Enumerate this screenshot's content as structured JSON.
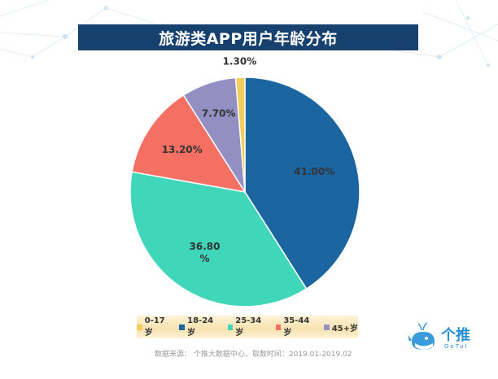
{
  "header": {
    "title": "旅游类APP用户年龄分布"
  },
  "chart_data": {
    "type": "pie",
    "title": "旅游类APP用户年龄分布",
    "start_angle_deg": 0,
    "direction": "clockwise",
    "slices": [
      {
        "label": "18-24岁",
        "value": 41.0,
        "display": "41.00%",
        "color": "#1b65a1"
      },
      {
        "label": "25-34岁",
        "value": 36.8,
        "display": "36.80\n%",
        "color": "#3fd6ba"
      },
      {
        "label": "35-44岁",
        "value": 13.2,
        "display": "13.20%",
        "color": "#f47063"
      },
      {
        "label": "45+岁",
        "value": 7.7,
        "display": "7.70%",
        "color": "#938fc2"
      },
      {
        "label": "0-17岁",
        "value": 1.3,
        "display": "1.30%",
        "color": "#f3cc5c"
      }
    ],
    "legend_position": "bottom",
    "legend_order": [
      "0-17岁",
      "18-24岁",
      "25-34岁",
      "35-44岁",
      "45+岁"
    ]
  },
  "footer": {
    "source": "数据来源： 个推大数据中心，取数时间：2019.01-2019.02"
  },
  "logo": {
    "name": "个推",
    "sub": "GeTuI",
    "icon": "whale-logo-icon"
  }
}
